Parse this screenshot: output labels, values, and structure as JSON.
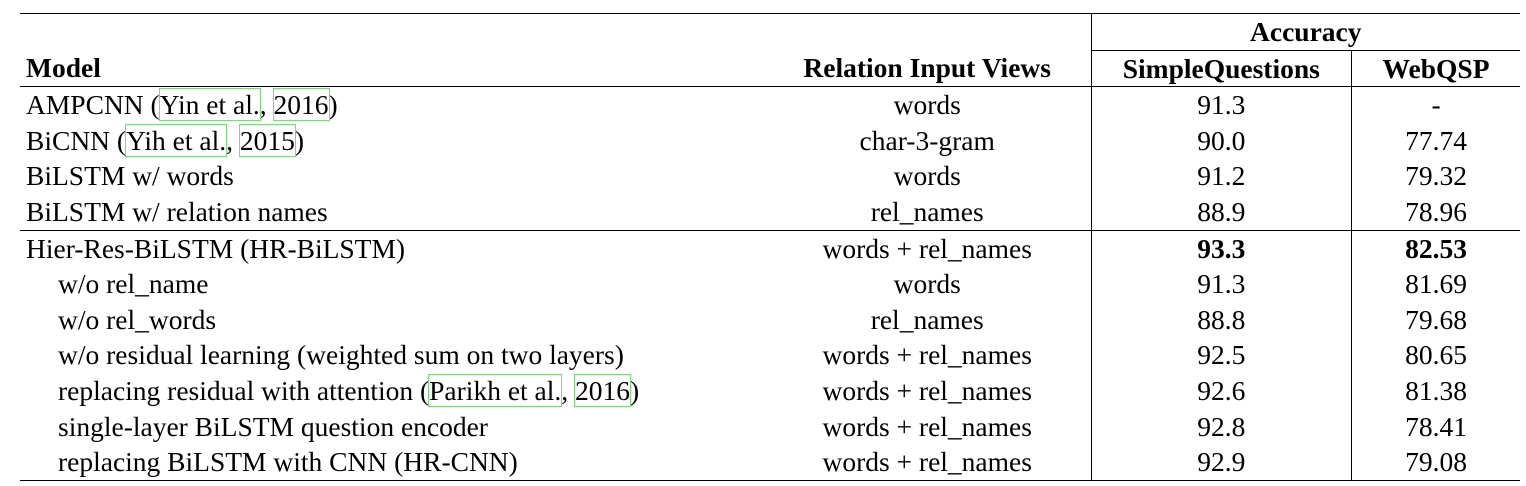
{
  "table": {
    "header": {
      "accuracy": "Accuracy",
      "model": "Model",
      "relation_input_views": "Relation Input Views",
      "simplequestions": "SimpleQuestions",
      "webqsp": "WebQSP"
    },
    "rows": [
      {
        "model_pre": "AMPCNN (",
        "cite_a": "Yin et al.",
        "sep": ", ",
        "cite_b": "2016",
        "model_post": ")",
        "views": "words",
        "sq": "91.3",
        "wq": "-"
      },
      {
        "model_pre": "BiCNN (",
        "cite_a": "Yih et al.",
        "sep": ", ",
        "cite_b": "2015",
        "model_post": ")",
        "views": "char-3-gram",
        "sq": "90.0",
        "wq": "77.74"
      },
      {
        "model": "BiLSTM w/ words",
        "views": "words",
        "sq": "91.2",
        "wq": "79.32"
      },
      {
        "model": "BiLSTM w/ relation names",
        "views": "rel_names",
        "sq": "88.9",
        "wq": "78.96"
      },
      {
        "model": "Hier-Res-BiLSTM (HR-BiLSTM)",
        "views": "words + rel_names",
        "sq": "93.3",
        "wq": "82.53"
      },
      {
        "model": "w/o rel_name",
        "views": "words",
        "sq": "91.3",
        "wq": "81.69"
      },
      {
        "model": "w/o rel_words",
        "views": "rel_names",
        "sq": "88.8",
        "wq": "79.68"
      },
      {
        "model": "w/o residual learning (weighted sum on two layers)",
        "views": "words + rel_names",
        "sq": "92.5",
        "wq": "80.65"
      },
      {
        "model_pre": "replacing residual with attention (",
        "cite_a": "Parikh et al.",
        "sep": ", ",
        "cite_b": "2016",
        "model_post": ")",
        "views": "words + rel_names",
        "sq": "92.6",
        "wq": "81.38"
      },
      {
        "model": "single-layer BiLSTM question encoder",
        "views": "words + rel_names",
        "sq": "92.8",
        "wq": "78.41"
      },
      {
        "model": "replacing BiLSTM with CNN (HR-CNN)",
        "views": "words + rel_names",
        "sq": "92.9",
        "wq": "79.08"
      }
    ]
  },
  "colors": {
    "citation_box": "#7fd87f",
    "rule": "#000000"
  }
}
